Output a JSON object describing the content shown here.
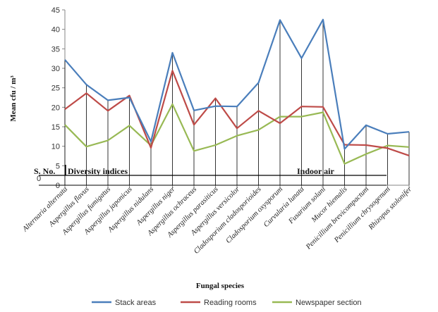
{
  "chart_data": {
    "type": "line",
    "title": "",
    "xlabel": "Fungal species",
    "ylabel": "Mean cfu / m³",
    "ylim": [
      0,
      45
    ],
    "yticks": [
      0,
      5,
      10,
      15,
      20,
      25,
      30,
      35,
      40,
      45
    ],
    "grid": false,
    "legend_position": "bottom",
    "categories": [
      "Alternaria alternata",
      "Aspergillus flavus",
      "Aspergillus fumigatus",
      "Aspergillus japonicus",
      "Aspergillus nidulans",
      "Aspergillus niger",
      "Aspergillus ochraceus",
      "Aspergillus parasiticus",
      "Aspergillus versicolor",
      "Cladosporium cladosporioides",
      "Cladosporium oxysporum",
      "Curvularia lunata",
      "Fusarium solani",
      "Mucor hiemalis",
      "Penicillium brevicompactum",
      "Penicillium chrysogenum",
      "Rhizopus stolonifer"
    ],
    "series": [
      {
        "name": "Stack areas",
        "color": "#4a7ebb",
        "values": [
          32.2,
          25.8,
          21.8,
          22.5,
          11.2,
          34.0,
          19.2,
          20.3,
          20.2,
          26.3,
          42.4,
          32.6,
          42.5,
          9.3,
          15.4,
          13.2,
          13.7
        ]
      },
      {
        "name": "Reading rooms",
        "color": "#be4b48",
        "values": [
          19.5,
          23.6,
          19.1,
          23.0,
          9.6,
          29.4,
          15.5,
          22.3,
          14.6,
          19.1,
          15.9,
          20.2,
          20.1,
          10.4,
          10.3,
          9.5,
          7.6
        ]
      },
      {
        "name": "Newspaper section",
        "color": "#98b954",
        "values": [
          15.5,
          9.9,
          11.5,
          15.3,
          10.2,
          20.8,
          8.8,
          10.3,
          12.7,
          14.2,
          17.6,
          17.6,
          18.7,
          5.5,
          8.0,
          10.2,
          9.8
        ]
      }
    ]
  },
  "overlay_text": {
    "sno": "S. No.",
    "diversity": "Diversity indices",
    "indoor": "Indoor air",
    "zero_mark": "0"
  }
}
